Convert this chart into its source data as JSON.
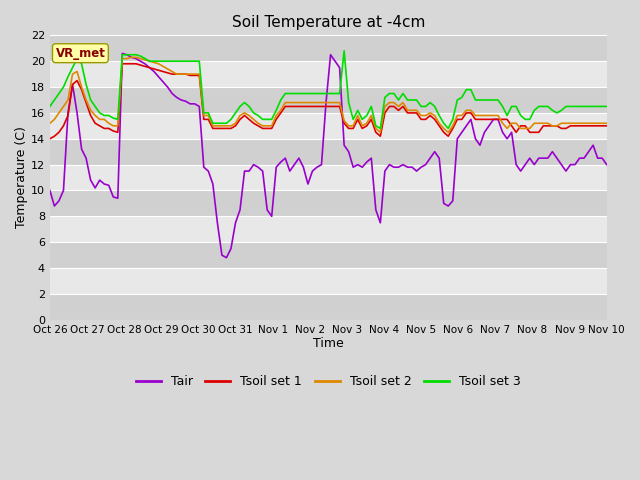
{
  "title": "Soil Temperature at -4cm",
  "xlabel": "Time",
  "ylabel": "Temperature (C)",
  "ylim": [
    0,
    22
  ],
  "yticks": [
    0,
    2,
    4,
    6,
    8,
    10,
    12,
    14,
    16,
    18,
    20,
    22
  ],
  "xtick_labels": [
    "Oct 26",
    "Oct 27",
    "Oct 28",
    "Oct 29",
    "Oct 30",
    "Oct 31",
    "Nov 1",
    "Nov 2",
    "Nov 3",
    "Nov 4",
    "Nov 5",
    "Nov 6",
    "Nov 7",
    "Nov 8",
    "Nov 9",
    "Nov 10"
  ],
  "fig_bg_color": "#d8d8d8",
  "plot_bg_color": "#d8d8d8",
  "band_colors": [
    "#d0d0d0",
    "#e8e8e8"
  ],
  "grid_color": "#ffffff",
  "colors": {
    "Tair": "#9900cc",
    "Tsoil1": "#dd0000",
    "Tsoil2": "#dd8800",
    "Tsoil3": "#00dd00"
  },
  "legend_labels": [
    "Tair",
    "Tsoil set 1",
    "Tsoil set 2",
    "Tsoil set 3"
  ],
  "annotation_text": "VR_met",
  "annotation_box_color": "#ffffaa",
  "annotation_text_color": "#880000",
  "Tair": [
    10.0,
    8.8,
    9.2,
    10.0,
    16.0,
    18.2,
    16.0,
    13.2,
    12.5,
    10.8,
    10.2,
    10.8,
    10.5,
    10.4,
    9.5,
    9.4,
    20.6,
    20.5,
    20.3,
    20.2,
    20.0,
    19.8,
    19.5,
    19.2,
    18.8,
    18.4,
    18.0,
    17.5,
    17.2,
    17.0,
    16.9,
    16.7,
    16.7,
    16.5,
    11.8,
    11.5,
    10.5,
    7.5,
    5.0,
    4.8,
    5.5,
    7.5,
    8.5,
    11.5,
    11.5,
    12.0,
    11.8,
    11.5,
    8.5,
    8.0,
    11.8,
    12.2,
    12.5,
    11.5,
    12.0,
    12.5,
    11.8,
    10.5,
    11.5,
    11.8,
    12.0,
    16.8,
    20.5,
    20.0,
    19.5,
    13.5,
    13.0,
    11.8,
    12.0,
    11.8,
    12.2,
    12.5,
    8.5,
    7.5,
    11.5,
    12.0,
    11.8,
    11.8,
    12.0,
    11.8,
    11.8,
    11.5,
    11.8,
    12.0,
    12.5,
    13.0,
    12.5,
    9.0,
    8.8,
    9.2,
    14.0,
    14.5,
    15.0,
    15.5,
    14.0,
    13.5,
    14.5,
    15.0,
    15.5,
    15.5,
    14.5,
    14.0,
    14.5,
    12.0,
    11.5,
    12.0,
    12.5,
    12.0,
    12.5,
    12.5,
    12.5,
    13.0,
    12.5,
    12.0,
    11.5,
    12.0,
    12.0,
    12.5,
    12.5,
    13.0,
    13.5,
    12.5,
    12.5,
    12.0
  ],
  "Tsoil1": [
    14.0,
    14.2,
    14.5,
    15.0,
    15.8,
    18.2,
    18.5,
    17.8,
    16.8,
    15.8,
    15.2,
    15.0,
    14.8,
    14.8,
    14.6,
    14.5,
    19.8,
    19.8,
    19.8,
    19.8,
    19.7,
    19.6,
    19.5,
    19.4,
    19.3,
    19.2,
    19.1,
    19.0,
    19.0,
    19.0,
    19.0,
    18.9,
    18.9,
    18.9,
    15.5,
    15.5,
    14.8,
    14.8,
    14.8,
    14.8,
    14.8,
    15.0,
    15.5,
    15.8,
    15.5,
    15.2,
    15.0,
    14.8,
    14.8,
    14.8,
    15.5,
    16.0,
    16.5,
    16.5,
    16.5,
    16.5,
    16.5,
    16.5,
    16.5,
    16.5,
    16.5,
    16.5,
    16.5,
    16.5,
    16.5,
    15.2,
    14.8,
    14.8,
    15.5,
    14.8,
    15.0,
    15.5,
    14.5,
    14.2,
    16.0,
    16.5,
    16.5,
    16.2,
    16.5,
    16.0,
    16.0,
    16.0,
    15.5,
    15.5,
    15.8,
    15.5,
    15.0,
    14.5,
    14.2,
    14.8,
    15.5,
    15.5,
    16.0,
    16.0,
    15.5,
    15.5,
    15.5,
    15.5,
    15.5,
    15.5,
    15.5,
    15.5,
    15.0,
    14.5,
    15.0,
    15.0,
    14.5,
    14.5,
    14.5,
    15.0,
    15.0,
    15.0,
    15.0,
    14.8,
    14.8,
    15.0,
    15.0,
    15.0,
    15.0,
    15.0,
    15.0,
    15.0,
    15.0,
    15.0
  ],
  "Tsoil2": [
    15.2,
    15.5,
    16.0,
    16.5,
    17.0,
    19.0,
    19.2,
    18.0,
    17.0,
    16.2,
    15.8,
    15.5,
    15.5,
    15.2,
    15.0,
    15.0,
    20.2,
    20.2,
    20.3,
    20.3,
    20.2,
    20.1,
    20.0,
    19.9,
    19.8,
    19.6,
    19.4,
    19.2,
    19.0,
    19.0,
    19.0,
    19.0,
    19.0,
    19.0,
    15.8,
    15.8,
    15.0,
    15.0,
    15.0,
    15.0,
    15.0,
    15.2,
    15.8,
    16.0,
    15.8,
    15.5,
    15.2,
    15.0,
    15.0,
    15.0,
    15.8,
    16.2,
    16.8,
    16.8,
    16.8,
    16.8,
    16.8,
    16.8,
    16.8,
    16.8,
    16.8,
    16.8,
    16.8,
    16.8,
    16.8,
    15.4,
    15.0,
    15.0,
    15.8,
    15.0,
    15.2,
    15.8,
    14.8,
    14.5,
    16.5,
    16.8,
    16.8,
    16.5,
    16.8,
    16.2,
    16.2,
    16.2,
    15.8,
    15.8,
    16.0,
    15.8,
    15.2,
    14.8,
    14.5,
    15.0,
    15.8,
    15.8,
    16.2,
    16.2,
    15.8,
    15.8,
    15.8,
    15.8,
    15.8,
    15.8,
    15.2,
    14.8,
    15.2,
    15.2,
    14.8,
    14.8,
    14.8,
    15.2,
    15.2,
    15.2,
    15.2,
    15.0,
    15.0,
    15.2,
    15.2,
    15.2,
    15.2,
    15.2,
    15.2,
    15.2,
    15.2,
    15.2,
    15.2,
    15.2
  ],
  "Tsoil3": [
    16.5,
    17.0,
    17.5,
    18.0,
    18.8,
    19.5,
    20.2,
    19.8,
    18.2,
    17.0,
    16.5,
    16.0,
    15.8,
    15.8,
    15.6,
    15.5,
    20.5,
    20.5,
    20.5,
    20.5,
    20.4,
    20.2,
    20.0,
    20.0,
    20.0,
    20.0,
    20.0,
    20.0,
    20.0,
    20.0,
    20.0,
    20.0,
    20.0,
    20.0,
    16.0,
    16.0,
    15.2,
    15.2,
    15.2,
    15.2,
    15.5,
    16.0,
    16.5,
    16.8,
    16.5,
    16.0,
    15.8,
    15.5,
    15.5,
    15.5,
    16.2,
    17.0,
    17.5,
    17.5,
    17.5,
    17.5,
    17.5,
    17.5,
    17.5,
    17.5,
    17.5,
    17.5,
    17.5,
    17.5,
    17.5,
    20.8,
    16.8,
    15.5,
    16.2,
    15.5,
    15.8,
    16.5,
    15.0,
    14.8,
    17.2,
    17.5,
    17.5,
    17.0,
    17.5,
    17.0,
    17.0,
    17.0,
    16.5,
    16.5,
    16.8,
    16.5,
    15.8,
    15.2,
    14.8,
    15.5,
    17.0,
    17.2,
    17.8,
    17.8,
    17.0,
    17.0,
    17.0,
    17.0,
    17.0,
    17.0,
    16.5,
    15.8,
    16.5,
    16.5,
    15.8,
    15.5,
    15.5,
    16.2,
    16.5,
    16.5,
    16.5,
    16.2,
    16.0,
    16.2,
    16.5,
    16.5,
    16.5,
    16.5,
    16.5,
    16.5,
    16.5,
    16.5,
    16.5,
    16.5
  ]
}
